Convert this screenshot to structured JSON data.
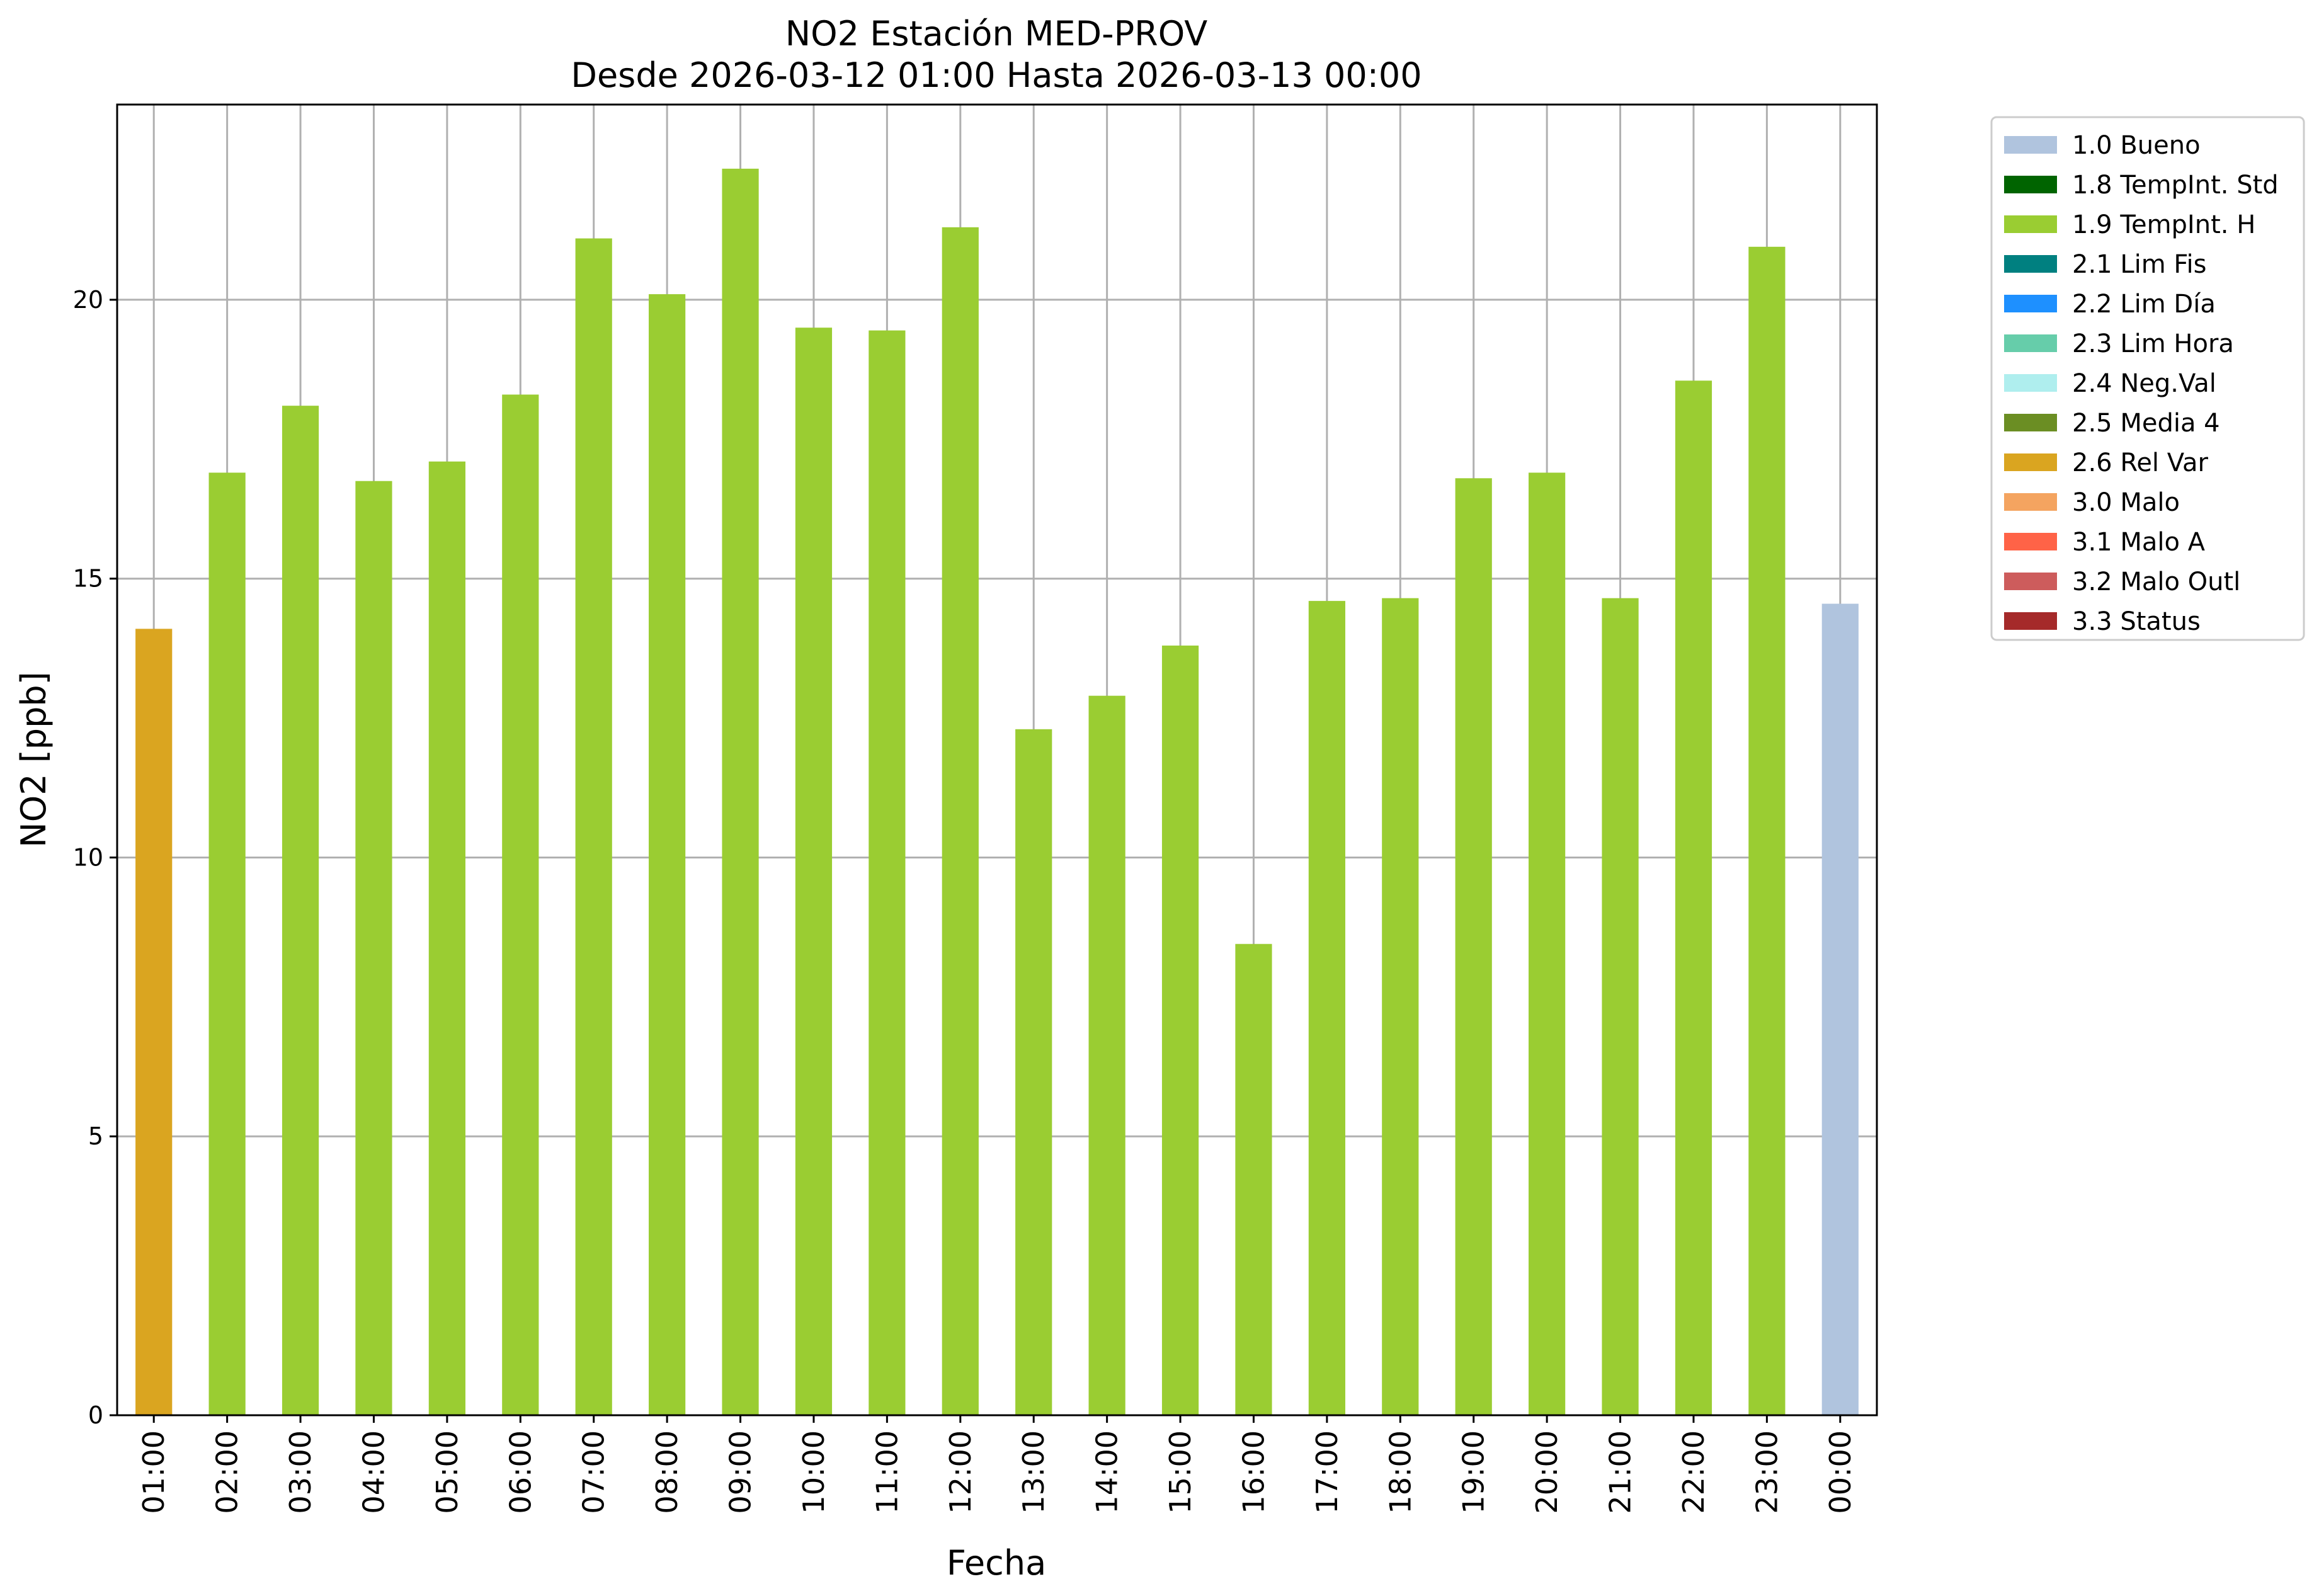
{
  "chart_data": {
    "type": "bar",
    "title": "NO2 Estación MED-PROV",
    "subtitle": "Desde 2026-03-12 01:00 Hasta 2026-03-13 00:00",
    "xlabel": "Fecha",
    "ylabel": "NO2 [ppb]",
    "ylim": [
      0,
      23.5
    ],
    "yticks": [
      0,
      5,
      10,
      15,
      20
    ],
    "grid": true,
    "legend_position": "outside-top-right",
    "categories": [
      "01:00",
      "02:00",
      "03:00",
      "04:00",
      "05:00",
      "06:00",
      "07:00",
      "08:00",
      "09:00",
      "10:00",
      "11:00",
      "12:00",
      "13:00",
      "14:00",
      "15:00",
      "16:00",
      "17:00",
      "18:00",
      "19:00",
      "20:00",
      "21:00",
      "22:00",
      "23:00",
      "00:00"
    ],
    "values": [
      14.1,
      16.9,
      18.1,
      16.75,
      17.1,
      18.3,
      21.1,
      20.1,
      22.35,
      19.5,
      19.45,
      21.3,
      12.3,
      12.9,
      13.8,
      8.45,
      14.6,
      14.65,
      16.8,
      16.9,
      14.65,
      18.55,
      20.95,
      14.55
    ],
    "flags": [
      "2.6 Rel Var",
      "1.9 TempInt. H",
      "1.9 TempInt. H",
      "1.9 TempInt. H",
      "1.9 TempInt. H",
      "1.9 TempInt. H",
      "1.9 TempInt. H",
      "1.9 TempInt. H",
      "1.9 TempInt. H",
      "1.9 TempInt. H",
      "1.9 TempInt. H",
      "1.9 TempInt. H",
      "1.9 TempInt. H",
      "1.9 TempInt. H",
      "1.9 TempInt. H",
      "1.9 TempInt. H",
      "1.9 TempInt. H",
      "1.9 TempInt. H",
      "1.9 TempInt. H",
      "1.9 TempInt. H",
      "1.9 TempInt. H",
      "1.9 TempInt. H",
      "1.9 TempInt. H",
      "1.0 Bueno"
    ],
    "legend": [
      {
        "label": "1.0 Bueno",
        "color": "#b0c4de"
      },
      {
        "label": "1.8 TempInt. Std",
        "color": "#006400"
      },
      {
        "label": "1.9 TempInt. H",
        "color": "#9acd32"
      },
      {
        "label": "2.1 Lim Fis",
        "color": "#008080"
      },
      {
        "label": "2.2 Lim Día",
        "color": "#1e90ff"
      },
      {
        "label": "2.3 Lim Hora",
        "color": "#66cdaa"
      },
      {
        "label": "2.4 Neg.Val",
        "color": "#afeeee"
      },
      {
        "label": "2.5 Media 4",
        "color": "#6b8e23"
      },
      {
        "label": "2.6 Rel Var",
        "color": "#daa520"
      },
      {
        "label": "3.0 Malo",
        "color": "#f4a460"
      },
      {
        "label": "3.1 Malo A",
        "color": "#ff6347"
      },
      {
        "label": "3.2 Malo Outl",
        "color": "#cd5c5c"
      },
      {
        "label": "3.3 Status",
        "color": "#a52a2a"
      }
    ]
  }
}
